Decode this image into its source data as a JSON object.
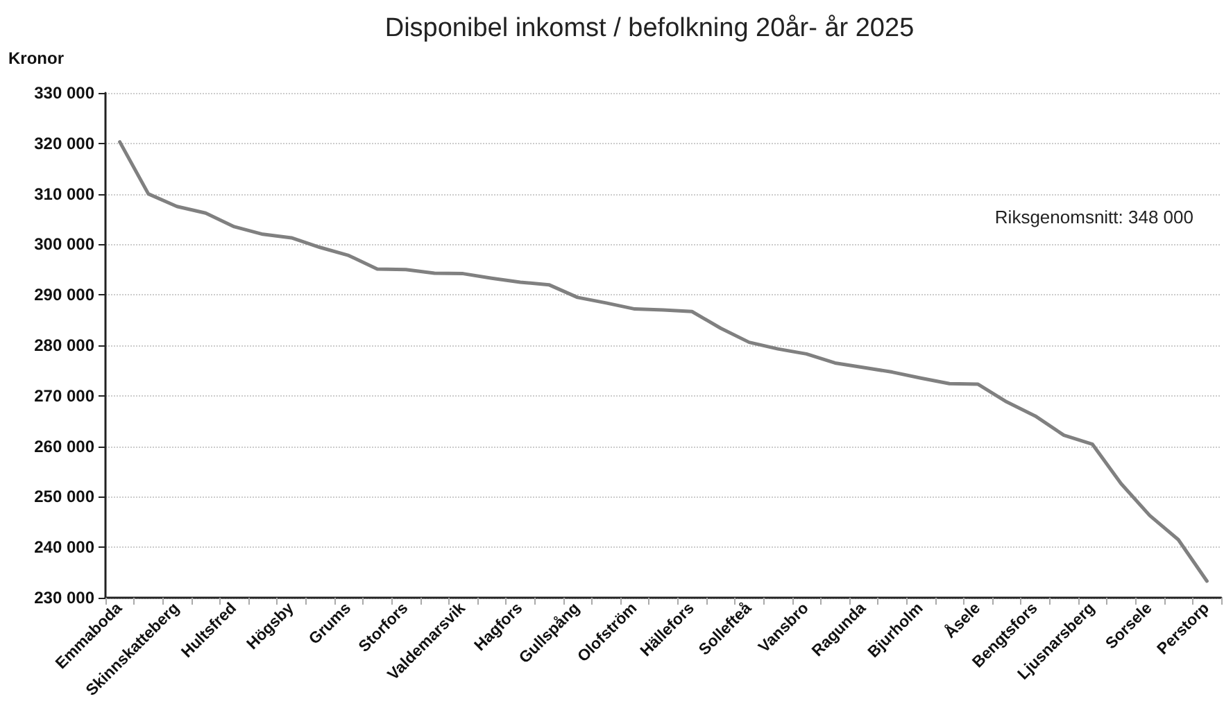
{
  "chart_data": {
    "type": "line",
    "title": "Disponibel inkomst / befolkning 20år- år 2025",
    "ylabel": "Kronor",
    "categories": [
      "Emmaboda",
      null,
      "Skinnskatteberg",
      null,
      "Hultsfred",
      null,
      "Högsby",
      null,
      "Grums",
      null,
      "Storfors",
      null,
      "Valdemarsvik",
      null,
      "Hagfors",
      null,
      "Gullspång",
      null,
      "Olofström",
      null,
      "Hällefors",
      null,
      "Sollefteå",
      null,
      "Vansbro",
      null,
      "Ragunda",
      null,
      "Bjurholm",
      null,
      "Åsele",
      null,
      "Bengtsfors",
      null,
      "Ljusnarsberg",
      null,
      "Sorsele",
      null,
      "Perstorp"
    ],
    "series": [
      {
        "color": "#808080",
        "values": [
          320300,
          310000,
          307500,
          306200,
          303500,
          302000,
          301300,
          299400,
          297800,
          295100,
          295000,
          294300,
          294200,
          293300,
          292500,
          292000,
          289500,
          288400,
          287200,
          287000,
          286700,
          283400,
          280600,
          279300,
          278300,
          276500,
          275600,
          274700,
          273500,
          272400,
          272300,
          268800,
          266000,
          262200,
          260400,
          252600,
          246300,
          241500,
          233300
        ]
      }
    ],
    "ylim": [
      230000,
      330000
    ],
    "yticks": [
      {
        "value": 230000,
        "label": "230 000"
      },
      {
        "value": 240000,
        "label": "240 000"
      },
      {
        "value": 250000,
        "label": "250 000"
      },
      {
        "value": 260000,
        "label": "260 000"
      },
      {
        "value": 270000,
        "label": "270 000"
      },
      {
        "value": 280000,
        "label": "280 000"
      },
      {
        "value": 290000,
        "label": "290 000"
      },
      {
        "value": 300000,
        "label": "300 000"
      },
      {
        "value": 310000,
        "label": "310 000"
      },
      {
        "value": 320000,
        "label": "320 000"
      },
      {
        "value": 330000,
        "label": "330 000"
      }
    ],
    "grid": "y",
    "marker": "none",
    "line_style": "solid",
    "annotations": [
      "Riksgenomsnitt: 348 000"
    ]
  }
}
